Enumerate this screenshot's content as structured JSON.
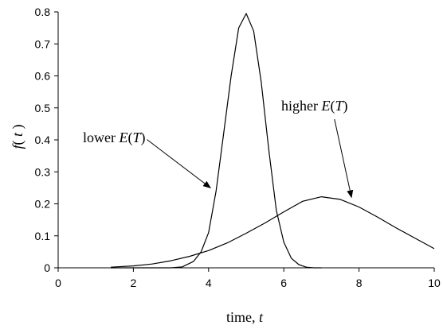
{
  "chart_data": {
    "type": "line",
    "xlabel": "time, ",
    "xlabel_var": "t",
    "ylabel_var": "f",
    "ylabel_arg_open": "( ",
    "ylabel_arg_var": "t",
    "ylabel_arg_close": " )",
    "xlim": [
      0,
      10
    ],
    "ylim": [
      0,
      0.8
    ],
    "xticks": [
      0,
      2,
      4,
      6,
      8,
      10
    ],
    "yticks": [
      0,
      0.1,
      0.2,
      0.3,
      0.4,
      0.5,
      0.6,
      0.7,
      0.8
    ],
    "grid": false,
    "series": [
      {
        "x": [
          1.4,
          3.0,
          3.3,
          3.6,
          3.8,
          4.0,
          4.2,
          4.4,
          4.6,
          4.8,
          5.0,
          5.2,
          5.4,
          5.6,
          5.8,
          6.0,
          6.2,
          6.4,
          6.6,
          6.8,
          7.0
        ],
        "y": [
          0,
          0,
          0.003,
          0.02,
          0.05,
          0.11,
          0.24,
          0.42,
          0.6,
          0.75,
          0.795,
          0.74,
          0.58,
          0.37,
          0.18,
          0.08,
          0.03,
          0.01,
          0.002,
          0,
          0
        ]
      },
      {
        "x": [
          1.4,
          2.0,
          2.5,
          3.0,
          3.5,
          4.0,
          4.5,
          5.0,
          5.5,
          6.0,
          6.5,
          7.0,
          7.5,
          8.0,
          8.5,
          9.0,
          9.5,
          10.0
        ],
        "y": [
          0.002,
          0.006,
          0.012,
          0.022,
          0.036,
          0.054,
          0.078,
          0.108,
          0.14,
          0.175,
          0.208,
          0.222,
          0.214,
          0.19,
          0.158,
          0.124,
          0.092,
          0.06
        ]
      }
    ],
    "annotations": [
      {
        "text_before": "lower ",
        "var": "E",
        "text_open": "(",
        "arg": "T",
        "text_close": ")",
        "target": [
          4.05,
          0.25
        ]
      },
      {
        "text_before": "higher ",
        "var": "E",
        "text_open": "(",
        "arg": "T",
        "text_close": ")",
        "target": [
          7.8,
          0.22
        ]
      }
    ]
  }
}
